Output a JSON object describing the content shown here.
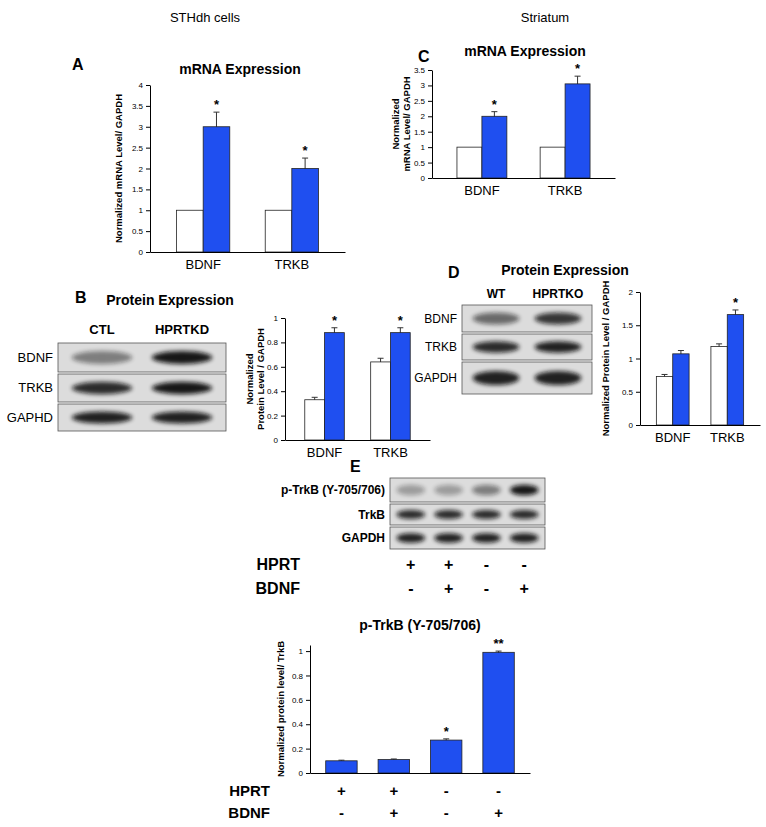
{
  "headers": [
    "STHdh cells",
    "Striatum"
  ],
  "panel_letters": [
    "A",
    "B",
    "C",
    "D",
    "E"
  ],
  "blots": [
    {
      "lanes": [
        "CTL",
        "HPRTKD"
      ],
      "rows": [
        "BDNF",
        "TRKB",
        "GAPHD"
      ]
    },
    {
      "lanes": [
        "WT",
        "HPRTKO"
      ],
      "rows": [
        "BDNF",
        "TRKB",
        "GAPDH"
      ]
    },
    {
      "rows": [
        "p-TrkB (Y-705/706)",
        "TrkB",
        "GAPDH"
      ],
      "conditions": [
        {
          "label": "HPRT",
          "values": [
            "+",
            "+",
            "-",
            "-"
          ]
        },
        {
          "label": "BDNF",
          "values": [
            "-",
            "+",
            "-",
            "+"
          ]
        }
      ]
    }
  ],
  "chart_data": [
    {
      "type": "bar",
      "title": "mRNA Expression",
      "y_label": "Normalized mRNA Level/ GAPDH",
      "categories": [
        "BDNF",
        "TRKB"
      ],
      "series": [
        {
          "color": "#ffffff",
          "values": [
            1,
            1
          ]
        },
        {
          "color": "#1f4ff0",
          "values": [
            3.0,
            2.0
          ],
          "errors": [
            0.35,
            0.25
          ],
          "significance": [
            "*",
            "*"
          ]
        }
      ],
      "ylim": [
        0,
        4
      ],
      "yticks": [
        0,
        0.5,
        1,
        1.5,
        2,
        2.5,
        3,
        3.5,
        4
      ]
    },
    {
      "type": "bar",
      "title": "Protein Expression",
      "y_label": "Normalized Protein Level / GAPDH",
      "categories": [
        "BDNF",
        "TRKB"
      ],
      "series": [
        {
          "color": "#ffffff",
          "values": [
            0.33,
            0.64
          ],
          "errors": [
            0.02,
            0.03
          ]
        },
        {
          "color": "#1f4ff0",
          "values": [
            0.88,
            0.88
          ],
          "errors": [
            0.04,
            0.04
          ],
          "significance": [
            "*",
            "*"
          ]
        }
      ],
      "ylim": [
        0,
        1
      ],
      "yticks": [
        0,
        0.2,
        0.4,
        0.6,
        0.8,
        1
      ]
    },
    {
      "type": "bar",
      "title": "mRNA Expression",
      "y_label": "Normalized mRNA Level/ GAPDH",
      "categories": [
        "BDNF",
        "TRKB"
      ],
      "series": [
        {
          "color": "#ffffff",
          "values": [
            1,
            1
          ]
        },
        {
          "color": "#1f4ff0",
          "values": [
            2.0,
            3.05
          ],
          "errors": [
            0.15,
            0.25
          ],
          "significance": [
            "*",
            "*"
          ]
        }
      ],
      "ylim": [
        0,
        3.5
      ],
      "yticks": [
        0,
        0.5,
        1,
        1.5,
        2,
        2.5,
        3,
        3.5
      ]
    },
    {
      "type": "bar",
      "title": "Protein Expression",
      "y_label": "Normalized Protein Level / GAPDH",
      "categories": [
        "BDNF",
        "TRKB"
      ],
      "series": [
        {
          "color": "#ffffff",
          "values": [
            0.73,
            1.18
          ],
          "errors": [
            0.03,
            0.04
          ]
        },
        {
          "color": "#1f4ff0",
          "values": [
            1.07,
            1.66
          ],
          "errors": [
            0.05,
            0.07
          ],
          "significance": [
            null,
            "*"
          ]
        }
      ],
      "ylim": [
        0,
        2
      ],
      "yticks": [
        0,
        0.5,
        1,
        1.5,
        2
      ]
    },
    {
      "type": "bar",
      "title": "p-TrkB (Y-705/706)",
      "y_label": "Normalized protein level/ TrkB",
      "categories": [
        null,
        null,
        null,
        null
      ],
      "series": [
        {
          "color": "#1f4ff0",
          "values": [
            0.1,
            0.11,
            0.27,
            0.99
          ],
          "errors": [
            0.005,
            0.005,
            0.01,
            0.01
          ],
          "significance": [
            null,
            null,
            "*",
            "**"
          ]
        }
      ],
      "conditions": [
        {
          "label": "HPRT",
          "values": [
            "+",
            "+",
            "-",
            "-"
          ]
        },
        {
          "label": "BDNF",
          "values": [
            "-",
            "+",
            "-",
            "+"
          ]
        }
      ],
      "ylim": [
        0,
        1.05
      ],
      "yticks": [
        0,
        0.2,
        0.4,
        0.6,
        0.8,
        1
      ]
    }
  ]
}
